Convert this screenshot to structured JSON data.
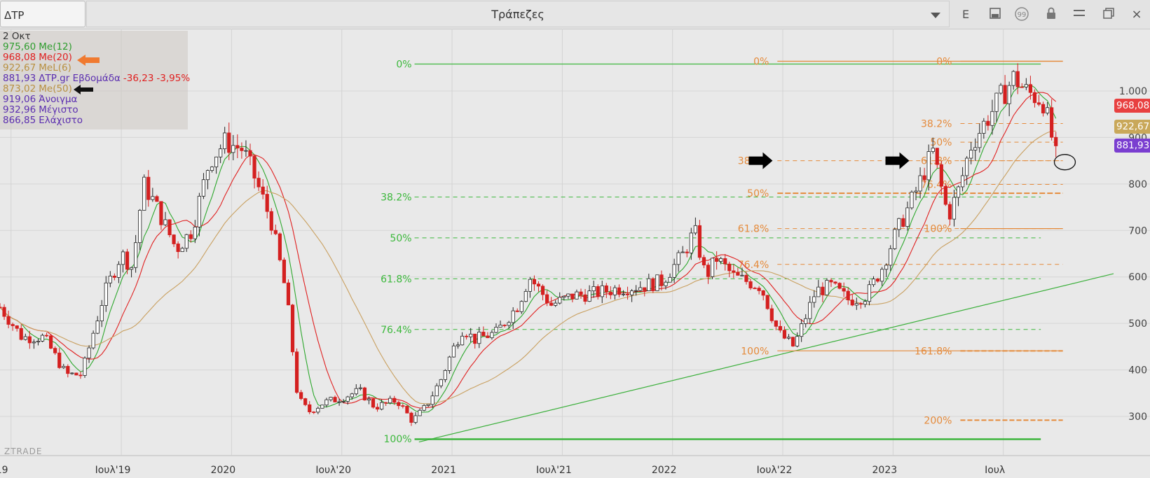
{
  "toolbar": {
    "symbol": "ΔΤΡ",
    "title": "Τράπεζες",
    "tool_letter": "E",
    "icons": [
      "chevron-down-icon",
      "save-icon",
      "quote-icon",
      "lock-icon",
      "menu-icon",
      "restore-icon",
      "close-icon"
    ],
    "close_glyph": "×"
  },
  "legend": {
    "date": "2 Οκτ",
    "rows": [
      {
        "value": "975,60",
        "label": "Me(12)",
        "color": "#2e9d2e"
      },
      {
        "value": "968,08",
        "label": "Me(20)",
        "color": "#e02020"
      },
      {
        "value": "922,67",
        "label": "MeL(6)",
        "color": "#b89040"
      },
      {
        "value": "881,93",
        "label": "ΔΤΡ.gr Εβδομάδα",
        "color": "#5b2eb0",
        "change": "-36,23",
        "change_pct": "-3,95%",
        "change_color": "#e02020"
      },
      {
        "value": "873,02",
        "label": "Me(50)",
        "color": "#b89040"
      },
      {
        "value": "919,06",
        "label": "Άνοιγμα",
        "color": "#5b2eb0"
      },
      {
        "value": "932,96",
        "label": "Μέγιστο",
        "color": "#5b2eb0"
      },
      {
        "value": "866,85",
        "label": "Ελάχιστο",
        "color": "#5b2eb0"
      }
    ]
  },
  "brand": "ZTRADE",
  "price_tags": [
    {
      "text": "968,08",
      "color": "#e84040",
      "y_value": 968.08
    },
    {
      "text": "922,67",
      "color": "#c9a85a",
      "y_value": 922.67
    },
    {
      "text": "881,93",
      "color": "#7a3ed0",
      "y_value": 881.93
    }
  ],
  "chart_data": {
    "type": "candlestick",
    "title": "Τράπεζες",
    "x_ticks": [
      "2019",
      "Ιουλ'19",
      "2020",
      "Ιουλ'20",
      "2021",
      "Ιουλ'21",
      "2022",
      "Ιουλ'22",
      "2023",
      "Ιουλ"
    ],
    "y_ticks": [
      300,
      400,
      500,
      600,
      700,
      800,
      900,
      "1.000"
    ],
    "ylim": [
      245,
      1095
    ],
    "grid": true,
    "series": [
      {
        "name": "ΔΤΡ.gr Εβδομάδα",
        "kind": "candles"
      },
      {
        "name": "Me(12)",
        "color": "#2ea82e"
      },
      {
        "name": "Me(20)",
        "color": "#e02020"
      },
      {
        "name": "MeL(6)",
        "color": "#c9a060"
      }
    ],
    "price_path": [
      [
        2018.95,
        535
      ],
      [
        2019.05,
        470
      ],
      [
        2019.15,
        470
      ],
      [
        2019.25,
        390
      ],
      [
        2019.32,
        390
      ],
      [
        2019.42,
        560
      ],
      [
        2019.5,
        650
      ],
      [
        2019.55,
        620
      ],
      [
        2019.6,
        800
      ],
      [
        2019.65,
        760
      ],
      [
        2019.75,
        660
      ],
      [
        2019.82,
        700
      ],
      [
        2019.9,
        850
      ],
      [
        2019.97,
        890
      ],
      [
        2020.05,
        875
      ],
      [
        2020.1,
        820
      ],
      [
        2020.18,
        720
      ],
      [
        2020.25,
        560
      ],
      [
        2020.3,
        340
      ],
      [
        2020.35,
        310
      ],
      [
        2020.42,
        330
      ],
      [
        2020.5,
        340
      ],
      [
        2020.58,
        355
      ],
      [
        2020.65,
        320
      ],
      [
        2020.75,
        335
      ],
      [
        2020.82,
        290
      ],
      [
        2020.88,
        320
      ],
      [
        2020.95,
        380
      ],
      [
        2021.0,
        440
      ],
      [
        2021.05,
        490
      ],
      [
        2021.1,
        465
      ],
      [
        2021.2,
        480
      ],
      [
        2021.3,
        540
      ],
      [
        2021.35,
        600
      ],
      [
        2021.45,
        540
      ],
      [
        2021.55,
        560
      ],
      [
        2021.65,
        565
      ],
      [
        2021.75,
        575
      ],
      [
        2021.85,
        580
      ],
      [
        2021.95,
        590
      ],
      [
        2022.05,
        650
      ],
      [
        2022.1,
        700
      ],
      [
        2022.15,
        600
      ],
      [
        2022.2,
        640
      ],
      [
        2022.28,
        600
      ],
      [
        2022.4,
        580
      ],
      [
        2022.48,
        480
      ],
      [
        2022.55,
        450
      ],
      [
        2022.6,
        510
      ],
      [
        2022.65,
        570
      ],
      [
        2022.72,
        580
      ],
      [
        2022.8,
        550
      ],
      [
        2022.88,
        560
      ],
      [
        2022.95,
        620
      ],
      [
        2023.0,
        680
      ],
      [
        2023.1,
        780
      ],
      [
        2023.18,
        870
      ],
      [
        2023.25,
        730
      ],
      [
        2023.3,
        790
      ],
      [
        2023.35,
        880
      ],
      [
        2023.4,
        920
      ],
      [
        2023.48,
        980
      ],
      [
        2023.55,
        1030
      ],
      [
        2023.6,
        1000
      ],
      [
        2023.68,
        980
      ],
      [
        2023.72,
        900
      ],
      [
        2023.75,
        881.93
      ]
    ],
    "trendline": [
      [
        2020.85,
        245
      ],
      [
        2024.0,
        607
      ]
    ],
    "horizontal_lines": [
      {
        "value": 250,
        "from": 2020.83,
        "to": 2023.67
      }
    ],
    "fib_sets": [
      {
        "name": "green",
        "color": "#3cb83c",
        "x_start": 2020.83,
        "x_end": 2023.67,
        "levels": [
          {
            "label": "0%",
            "value": 1058
          },
          {
            "label": "38.2%",
            "value": 772
          },
          {
            "label": "50%",
            "value": 684
          },
          {
            "label": "61.8%",
            "value": 596
          },
          {
            "label": "76.4%",
            "value": 487
          },
          {
            "label": "100%",
            "value": 252
          }
        ]
      },
      {
        "name": "orange-a",
        "color": "#e58a3a",
        "x_start": 2022.45,
        "x_end": 2023.77,
        "levels": [
          {
            "label": "0%",
            "value": 1064
          },
          {
            "label": "38.2%",
            "value": 850
          },
          {
            "label": "50%",
            "value": 780
          },
          {
            "label": "61.8%",
            "value": 704
          },
          {
            "label": "76.4%",
            "value": 627
          },
          {
            "label": "100%",
            "value": 441
          }
        ]
      },
      {
        "name": "orange-b",
        "color": "#e58a3a",
        "x_start": 2023.28,
        "x_end": 2023.77,
        "levels": [
          {
            "label": "0%",
            "value": 1064
          },
          {
            "label": "38.2%",
            "value": 930
          },
          {
            "label": "50%",
            "value": 890
          },
          {
            "label": "61.8%",
            "value": 850
          },
          {
            "label": "76.4%",
            "value": 799
          },
          {
            "label": "100%",
            "value": 704
          },
          {
            "label": "161.8%",
            "value": 441
          },
          {
            "label": "200%",
            "value": 292
          }
        ]
      }
    ],
    "markers": [
      {
        "type": "arrow",
        "x": 2022.46,
        "y": 850,
        "color": "#000"
      },
      {
        "type": "arrow",
        "x": 2023.08,
        "y": 850,
        "color": "#000"
      },
      {
        "type": "ellipse",
        "x": 2023.76,
        "y": 862
      }
    ]
  }
}
